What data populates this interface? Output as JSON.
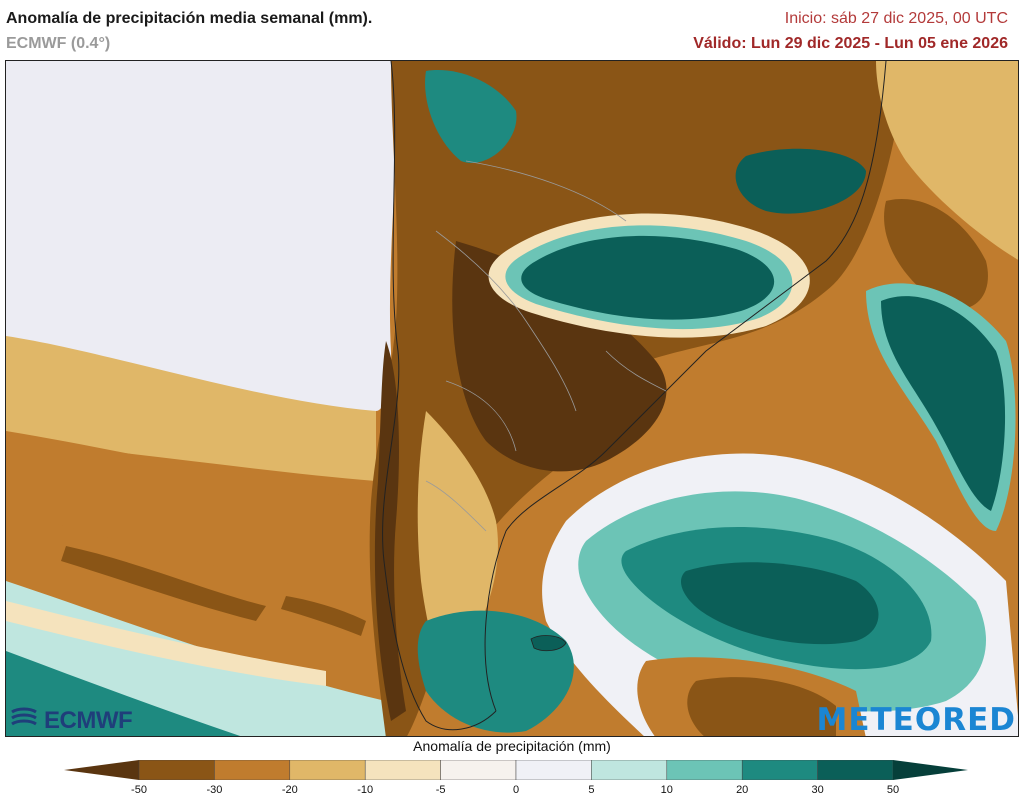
{
  "header": {
    "title": "Anomalía de precipitación media semanal (mm).",
    "model": "ECMWF (0.4°)",
    "init": "Inicio:  sáb 27 dic 2025, 00 UTC",
    "valid": "Válido: Lun 29 dic 2025 - Lun 05 ene 2026"
  },
  "logos": {
    "left": "ECMWF",
    "right": "METEORED"
  },
  "colorbar": {
    "label": "Anomalía de precipitación (mm)",
    "ticks": [
      "-50",
      "-30",
      "-20",
      "-10",
      "-5",
      "0",
      "5",
      "10",
      "20",
      "30",
      "50"
    ],
    "colors": [
      "#5a3510",
      "#8a5516",
      "#c07c2e",
      "#e0b768",
      "#f5e3bd",
      "#f6f2ee",
      "#f0f1f6",
      "#bfe6df",
      "#6cc4b6",
      "#1e8a80",
      "#0b5f58",
      "#063f3a"
    ]
  },
  "map": {
    "land_mask_color": "#ececf3",
    "palette": {
      "d50": "#5a3510",
      "d30": "#8a5516",
      "d20": "#c07c2e",
      "d10": "#e0b768",
      "d5": "#f5e3bd",
      "w5": "#bfe6df",
      "w10": "#6cc4b6",
      "w20": "#1e8a80",
      "w30": "#0b5f58"
    }
  }
}
